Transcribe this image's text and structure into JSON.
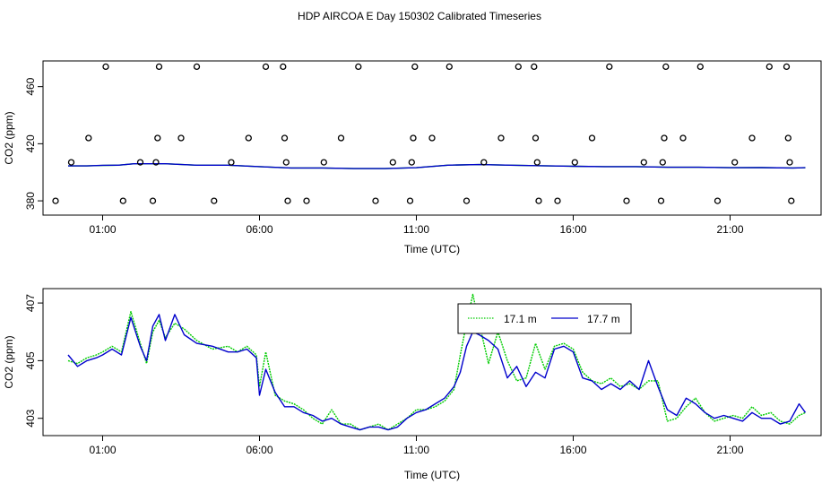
{
  "figure": {
    "title": "HDP AIRCOA E  Day 150302  Calibrated Timeseries"
  },
  "chart_data": [
    {
      "type": "line",
      "panel": "top",
      "title": "",
      "xlabel": "Time (UTC)",
      "ylabel": "CO2 (ppm)",
      "x_unit": "hours UTC",
      "xlim": [
        -0.9,
        23.9
      ],
      "ylim": [
        370,
        478
      ],
      "x_ticks": [
        1,
        6,
        11,
        16,
        21
      ],
      "x_tick_labels": [
        "01:00",
        "06:00",
        "11:00",
        "16:00",
        "21:00"
      ],
      "y_ticks": [
        380,
        420,
        460
      ],
      "y_tick_labels": [
        "380",
        "420",
        "460"
      ],
      "grid": false,
      "legend": "none",
      "series": [
        {
          "color": "#00cc00",
          "x": [
            -0.1,
            0.5,
            1.0,
            1.5,
            2.0,
            3.0,
            4.0,
            5.0,
            6.0,
            7.0,
            8.0,
            9.0,
            10.0,
            11.0,
            12.0,
            13.0,
            14.0,
            15.0,
            16.0,
            17.0,
            18.0,
            19.0,
            20.0,
            21.0,
            22.0,
            23.0,
            23.4
          ],
          "values": [
            404.5,
            404.5,
            404.8,
            405.0,
            406.0,
            406.0,
            405.0,
            405.0,
            404.0,
            403.0,
            403.0,
            402.6,
            402.6,
            403.2,
            405.0,
            405.4,
            405.0,
            404.6,
            404.2,
            404.0,
            404.0,
            403.5,
            403.5,
            403.2,
            403.3,
            403.0,
            403.2
          ]
        },
        {
          "color": "#0000cc",
          "x": [
            -0.1,
            0.5,
            1.0,
            1.5,
            2.0,
            3.0,
            4.0,
            5.0,
            6.0,
            7.0,
            8.0,
            9.0,
            10.0,
            11.0,
            12.0,
            13.0,
            14.0,
            15.0,
            16.0,
            17.0,
            18.0,
            19.0,
            20.0,
            21.0,
            22.0,
            23.0,
            23.4
          ],
          "values": [
            404.5,
            404.5,
            404.9,
            405.0,
            406.0,
            406.0,
            405.0,
            405.0,
            404.0,
            403.0,
            403.0,
            402.6,
            402.6,
            403.2,
            405.0,
            405.4,
            405.0,
            404.6,
            404.2,
            404.0,
            404.0,
            403.5,
            403.5,
            403.2,
            403.3,
            403.0,
            403.2
          ]
        }
      ],
      "markers": {
        "style": "open-circle",
        "levels": [
          380,
          407,
          424,
          474
        ],
        "points": [
          [
            -0.5,
            380
          ],
          [
            0.0,
            407
          ],
          [
            0.55,
            424
          ],
          [
            1.1,
            474
          ],
          [
            1.65,
            380
          ],
          [
            2.2,
            407
          ],
          [
            2.6,
            380
          ],
          [
            2.7,
            407
          ],
          [
            2.75,
            424
          ],
          [
            2.8,
            474
          ],
          [
            3.5,
            424
          ],
          [
            4.0,
            474
          ],
          [
            4.55,
            380
          ],
          [
            5.1,
            407
          ],
          [
            5.65,
            424
          ],
          [
            6.2,
            474
          ],
          [
            6.75,
            474
          ],
          [
            6.8,
            424
          ],
          [
            6.85,
            407
          ],
          [
            6.9,
            380
          ],
          [
            7.5,
            380
          ],
          [
            8.05,
            407
          ],
          [
            8.6,
            424
          ],
          [
            9.15,
            474
          ],
          [
            9.7,
            380
          ],
          [
            10.25,
            407
          ],
          [
            10.8,
            380
          ],
          [
            10.85,
            407
          ],
          [
            10.9,
            424
          ],
          [
            10.95,
            474
          ],
          [
            11.5,
            424
          ],
          [
            12.05,
            474
          ],
          [
            12.6,
            380
          ],
          [
            13.15,
            407
          ],
          [
            13.7,
            424
          ],
          [
            14.25,
            474
          ],
          [
            14.75,
            474
          ],
          [
            14.8,
            424
          ],
          [
            14.85,
            407
          ],
          [
            14.9,
            380
          ],
          [
            15.5,
            380
          ],
          [
            16.05,
            407
          ],
          [
            16.6,
            424
          ],
          [
            17.15,
            474
          ],
          [
            17.7,
            380
          ],
          [
            18.25,
            407
          ],
          [
            18.8,
            380
          ],
          [
            18.85,
            407
          ],
          [
            18.9,
            424
          ],
          [
            18.95,
            474
          ],
          [
            19.5,
            424
          ],
          [
            20.05,
            474
          ],
          [
            20.6,
            380
          ],
          [
            21.15,
            407
          ],
          [
            21.7,
            424
          ],
          [
            22.25,
            474
          ],
          [
            22.8,
            474
          ],
          [
            22.85,
            424
          ],
          [
            22.9,
            407
          ],
          [
            22.95,
            380
          ]
        ]
      }
    },
    {
      "type": "line",
      "panel": "bottom",
      "title": "",
      "xlabel": "Time (UTC)",
      "ylabel": "CO2 (ppm)",
      "x_unit": "hours UTC",
      "xlim": [
        -0.9,
        23.9
      ],
      "ylim": [
        402.4,
        407.5
      ],
      "x_ticks": [
        1,
        6,
        11,
        16,
        21
      ],
      "x_tick_labels": [
        "01:00",
        "06:00",
        "11:00",
        "16:00",
        "21:00"
      ],
      "y_ticks": [
        403,
        405,
        407
      ],
      "y_tick_labels": [
        "403",
        "405",
        "407"
      ],
      "grid": false,
      "legend": "top-center",
      "series": [
        {
          "name": "17.1 m",
          "color": "#00cc00",
          "line_style": "dotted",
          "x": [
            -0.1,
            0.2,
            0.5,
            0.8,
            1.0,
            1.3,
            1.6,
            1.9,
            2.2,
            2.4,
            2.6,
            2.8,
            3.0,
            3.3,
            3.6,
            4.0,
            4.5,
            5.0,
            5.3,
            5.6,
            5.9,
            6.0,
            6.2,
            6.5,
            6.8,
            7.1,
            7.4,
            7.7,
            8.0,
            8.3,
            8.6,
            8.9,
            9.2,
            9.5,
            9.8,
            10.1,
            10.4,
            10.7,
            11.0,
            11.3,
            11.6,
            11.9,
            12.2,
            12.4,
            12.6,
            12.8,
            13.0,
            13.3,
            13.6,
            13.9,
            14.2,
            14.5,
            14.8,
            15.1,
            15.4,
            15.7,
            16.0,
            16.3,
            16.6,
            16.9,
            17.2,
            17.5,
            17.8,
            18.1,
            18.4,
            18.7,
            19.0,
            19.3,
            19.6,
            19.9,
            20.2,
            20.5,
            20.8,
            21.1,
            21.4,
            21.7,
            22.0,
            22.3,
            22.6,
            22.9,
            23.2,
            23.4
          ],
          "values": [
            405.0,
            404.9,
            405.1,
            405.2,
            405.3,
            405.5,
            405.3,
            406.7,
            405.6,
            404.9,
            406.0,
            406.4,
            405.8,
            406.3,
            406.1,
            405.7,
            405.4,
            405.5,
            405.3,
            405.5,
            405.2,
            404.1,
            405.3,
            403.8,
            403.6,
            403.5,
            403.3,
            403.0,
            402.8,
            403.3,
            402.8,
            402.8,
            402.6,
            402.7,
            402.8,
            402.6,
            402.8,
            403.0,
            403.3,
            403.3,
            403.4,
            403.6,
            404.0,
            405.2,
            406.3,
            407.3,
            406.3,
            404.9,
            406.0,
            405.0,
            404.3,
            404.4,
            405.6,
            404.7,
            405.5,
            405.6,
            405.4,
            404.6,
            404.3,
            404.2,
            404.4,
            404.1,
            404.2,
            404.0,
            404.3,
            404.3,
            402.9,
            403.0,
            403.4,
            403.7,
            403.2,
            402.9,
            403.0,
            403.1,
            403.0,
            403.4,
            403.1,
            403.2,
            402.9,
            402.8,
            403.1,
            403.2
          ]
        },
        {
          "name": "17.7 m",
          "color": "#0000cc",
          "line_style": "solid",
          "x": [
            -0.1,
            0.2,
            0.5,
            0.8,
            1.0,
            1.3,
            1.6,
            1.9,
            2.2,
            2.4,
            2.6,
            2.8,
            3.0,
            3.3,
            3.6,
            4.0,
            4.5,
            5.0,
            5.3,
            5.6,
            5.9,
            6.0,
            6.2,
            6.5,
            6.8,
            7.1,
            7.4,
            7.7,
            8.0,
            8.3,
            8.6,
            8.9,
            9.2,
            9.5,
            9.8,
            10.1,
            10.4,
            10.7,
            11.0,
            11.3,
            11.6,
            11.9,
            12.2,
            12.4,
            12.6,
            12.8,
            13.0,
            13.3,
            13.6,
            13.9,
            14.2,
            14.5,
            14.8,
            15.1,
            15.4,
            15.7,
            16.0,
            16.3,
            16.6,
            16.9,
            17.2,
            17.5,
            17.8,
            18.1,
            18.4,
            18.7,
            19.0,
            19.3,
            19.6,
            19.9,
            20.2,
            20.5,
            20.8,
            21.1,
            21.4,
            21.7,
            22.0,
            22.3,
            22.6,
            22.9,
            23.2,
            23.4
          ],
          "values": [
            405.2,
            404.8,
            405.0,
            405.1,
            405.2,
            405.4,
            405.2,
            406.5,
            405.5,
            405.0,
            406.2,
            406.6,
            405.7,
            406.6,
            405.9,
            405.6,
            405.5,
            405.3,
            405.3,
            405.4,
            405.1,
            403.8,
            404.7,
            403.9,
            403.4,
            403.4,
            403.2,
            403.1,
            402.9,
            403.0,
            402.8,
            402.7,
            402.6,
            402.7,
            402.7,
            402.6,
            402.7,
            403.0,
            403.2,
            403.3,
            403.5,
            403.7,
            404.1,
            404.6,
            405.5,
            406.0,
            405.9,
            405.7,
            405.4,
            404.4,
            404.8,
            404.1,
            404.6,
            404.4,
            405.4,
            405.5,
            405.3,
            404.4,
            404.3,
            404.0,
            404.2,
            404.0,
            404.3,
            404.0,
            405.0,
            404.1,
            403.3,
            403.1,
            403.7,
            403.5,
            403.2,
            403.0,
            403.1,
            403.0,
            402.9,
            403.2,
            403.0,
            403.0,
            402.8,
            402.9,
            403.5,
            403.2
          ]
        }
      ]
    }
  ]
}
